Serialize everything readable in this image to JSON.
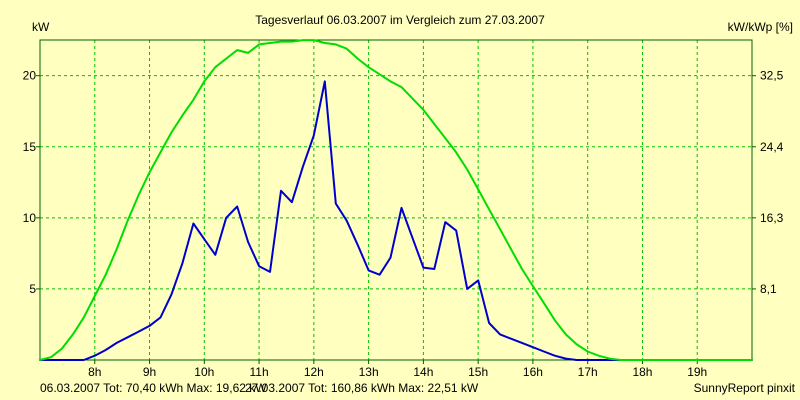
{
  "chart_data": {
    "type": "line",
    "title": "Tagesverlauf 06.03.2007 im Vergleich zum 27.03.2007",
    "ylabel_left": "kW",
    "ylabel_right": "kW/kWp [%]",
    "ylim": [
      0,
      22.51
    ],
    "x_range_hours": [
      7,
      20
    ],
    "x_tick_hours": [
      8,
      9,
      10,
      11,
      12,
      13,
      14,
      15,
      16,
      17,
      18,
      19
    ],
    "x_tick_labels": [
      "8h",
      "9h",
      "10h",
      "11h",
      "12h",
      "13h",
      "14h",
      "15h",
      "16h",
      "17h",
      "18h",
      "19h"
    ],
    "y_ticks_left": [
      5,
      10,
      15,
      20
    ],
    "y_tick_labels_left": [
      "5",
      "10",
      "15",
      "20"
    ],
    "y_ticks_right": [
      5,
      10,
      15,
      20
    ],
    "y_tick_labels_right": [
      "8,1",
      "16,3",
      "24,4",
      "32,5"
    ],
    "grid": true,
    "series": [
      {
        "name": "06.03.2007",
        "color": "#0000cc",
        "summary": "06.03.2007 Tot: 70,40 kWh Max: 19,62 kW",
        "x": [
          7.0,
          7.8,
          8.0,
          8.2,
          8.4,
          8.6,
          8.8,
          9.0,
          9.2,
          9.4,
          9.6,
          9.8,
          10.0,
          10.2,
          10.4,
          10.6,
          10.8,
          11.0,
          11.2,
          11.4,
          11.6,
          11.8,
          12.0,
          12.2,
          12.4,
          12.6,
          12.8,
          13.0,
          13.2,
          13.4,
          13.6,
          13.8,
          14.0,
          14.2,
          14.4,
          14.6,
          14.8,
          15.0,
          15.2,
          15.4,
          15.6,
          15.8,
          16.0,
          16.2,
          16.4,
          16.6,
          16.8,
          17.0,
          17.2,
          17.4,
          17.6,
          17.8,
          18.0,
          18.2,
          18.4,
          18.6,
          18.8,
          19.0,
          20.0
        ],
        "values": [
          0,
          0,
          0.3,
          0.7,
          1.2,
          1.6,
          2.0,
          2.4,
          3.0,
          4.6,
          6.8,
          9.6,
          8.5,
          7.4,
          10.0,
          10.8,
          8.3,
          6.6,
          6.2,
          11.9,
          11.1,
          13.6,
          15.8,
          19.6,
          11.0,
          9.8,
          8.1,
          6.3,
          6.0,
          7.2,
          10.7,
          8.6,
          6.5,
          6.4,
          9.7,
          9.1,
          5.0,
          5.6,
          2.6,
          1.8,
          1.5,
          1.2,
          0.9,
          0.6,
          0.3,
          0.1,
          0,
          0,
          0,
          0,
          0,
          0,
          0,
          0,
          0,
          0,
          0,
          0,
          0
        ]
      },
      {
        "name": "27.03.2007",
        "color": "#00dd00",
        "summary": "27.03.2007 Tot: 160,86 kWh Max: 22,51 kW",
        "x": [
          7.0,
          7.2,
          7.4,
          7.6,
          7.8,
          8.0,
          8.2,
          8.4,
          8.6,
          8.8,
          9.0,
          9.2,
          9.4,
          9.6,
          9.8,
          10.0,
          10.2,
          10.4,
          10.6,
          10.8,
          11.0,
          11.2,
          11.4,
          11.6,
          11.8,
          12.0,
          12.2,
          12.4,
          12.6,
          12.8,
          13.0,
          13.2,
          13.4,
          13.6,
          13.8,
          14.0,
          14.2,
          14.4,
          14.6,
          14.8,
          15.0,
          15.2,
          15.4,
          15.6,
          15.8,
          16.0,
          16.2,
          16.4,
          16.6,
          16.8,
          17.0,
          17.2,
          17.4,
          17.6,
          17.8,
          18.0,
          18.2,
          18.4,
          18.6,
          18.8,
          19.0,
          19.2,
          19.4,
          19.6,
          19.8,
          20.0
        ],
        "values": [
          0,
          0.2,
          0.8,
          1.8,
          3.0,
          4.5,
          6.0,
          7.8,
          9.8,
          11.6,
          13.2,
          14.6,
          16.0,
          17.2,
          18.3,
          19.6,
          20.6,
          21.2,
          21.8,
          21.6,
          22.2,
          22.3,
          22.4,
          22.4,
          22.5,
          22.5,
          22.3,
          22.2,
          21.9,
          21.2,
          20.6,
          20.1,
          19.6,
          19.2,
          18.4,
          17.6,
          16.6,
          15.6,
          14.6,
          13.4,
          12.0,
          10.6,
          9.2,
          7.8,
          6.4,
          5.2,
          4.0,
          2.8,
          1.8,
          1.1,
          0.6,
          0.3,
          0.1,
          0,
          0,
          0,
          0,
          0,
          0,
          0,
          0,
          0,
          0,
          0,
          0,
          0
        ]
      }
    ],
    "footer_right": "SunnyReport pinxit"
  }
}
